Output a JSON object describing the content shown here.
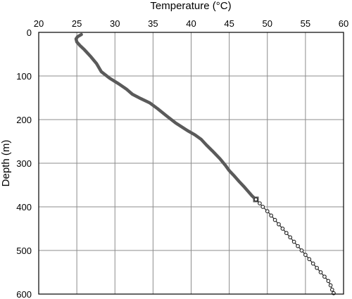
{
  "chart_data": {
    "type": "line",
    "xlabel": "Temperature (°C)",
    "ylabel": "Depth (m)",
    "xlim": [
      20,
      60
    ],
    "ylim": [
      0,
      600
    ],
    "y_inverted": true,
    "x_axis_position": "top",
    "grid": true,
    "x_ticks": [
      "20",
      "25",
      "30",
      "35",
      "40",
      "45",
      "50",
      "55",
      "60"
    ],
    "y_ticks": [
      "0",
      "100",
      "200",
      "300",
      "400",
      "500",
      "600"
    ],
    "colors": {
      "measured": "#5a5a5a",
      "extrapolated": "#222222",
      "grid": "#8c8c8c"
    },
    "series": [
      {
        "style": "solid-thick-line",
        "points": [
          [
            25.6,
            5
          ],
          [
            25.1,
            10
          ],
          [
            24.9,
            15
          ],
          [
            25.0,
            22
          ],
          [
            25.4,
            30
          ],
          [
            26.0,
            40
          ],
          [
            26.8,
            55
          ],
          [
            27.6,
            72
          ],
          [
            28.2,
            90
          ],
          [
            29.3,
            105
          ],
          [
            30.5,
            118
          ],
          [
            31.5,
            130
          ],
          [
            32.3,
            142
          ],
          [
            33.4,
            152
          ],
          [
            34.6,
            162
          ],
          [
            35.6,
            175
          ],
          [
            36.8,
            192
          ],
          [
            38.0,
            208
          ],
          [
            39.5,
            225
          ],
          [
            40.5,
            235
          ],
          [
            41.3,
            245
          ],
          [
            42.0,
            258
          ],
          [
            42.8,
            272
          ],
          [
            43.8,
            290
          ],
          [
            44.5,
            305
          ],
          [
            45.0,
            317
          ],
          [
            45.7,
            330
          ],
          [
            46.3,
            342
          ],
          [
            47.0,
            355
          ],
          [
            47.5,
            365
          ],
          [
            48.0,
            375
          ],
          [
            48.5,
            383
          ]
        ]
      },
      {
        "style": "circle-markers",
        "points": [
          [
            48.5,
            383
          ],
          [
            49.0,
            392
          ],
          [
            49.4,
            400
          ],
          [
            50.0,
            410
          ],
          [
            50.5,
            420
          ],
          [
            51.0,
            430
          ],
          [
            51.5,
            440
          ],
          [
            52.0,
            450
          ],
          [
            52.5,
            460
          ],
          [
            53.0,
            470
          ],
          [
            53.5,
            480
          ],
          [
            54.0,
            490
          ],
          [
            54.5,
            500
          ],
          [
            55.0,
            510
          ],
          [
            55.5,
            520
          ],
          [
            56.0,
            530
          ],
          [
            56.5,
            540
          ],
          [
            57.0,
            550
          ],
          [
            57.5,
            560
          ],
          [
            58.0,
            570
          ],
          [
            58.3,
            580
          ],
          [
            58.5,
            590
          ],
          [
            58.7,
            598
          ]
        ]
      }
    ]
  }
}
